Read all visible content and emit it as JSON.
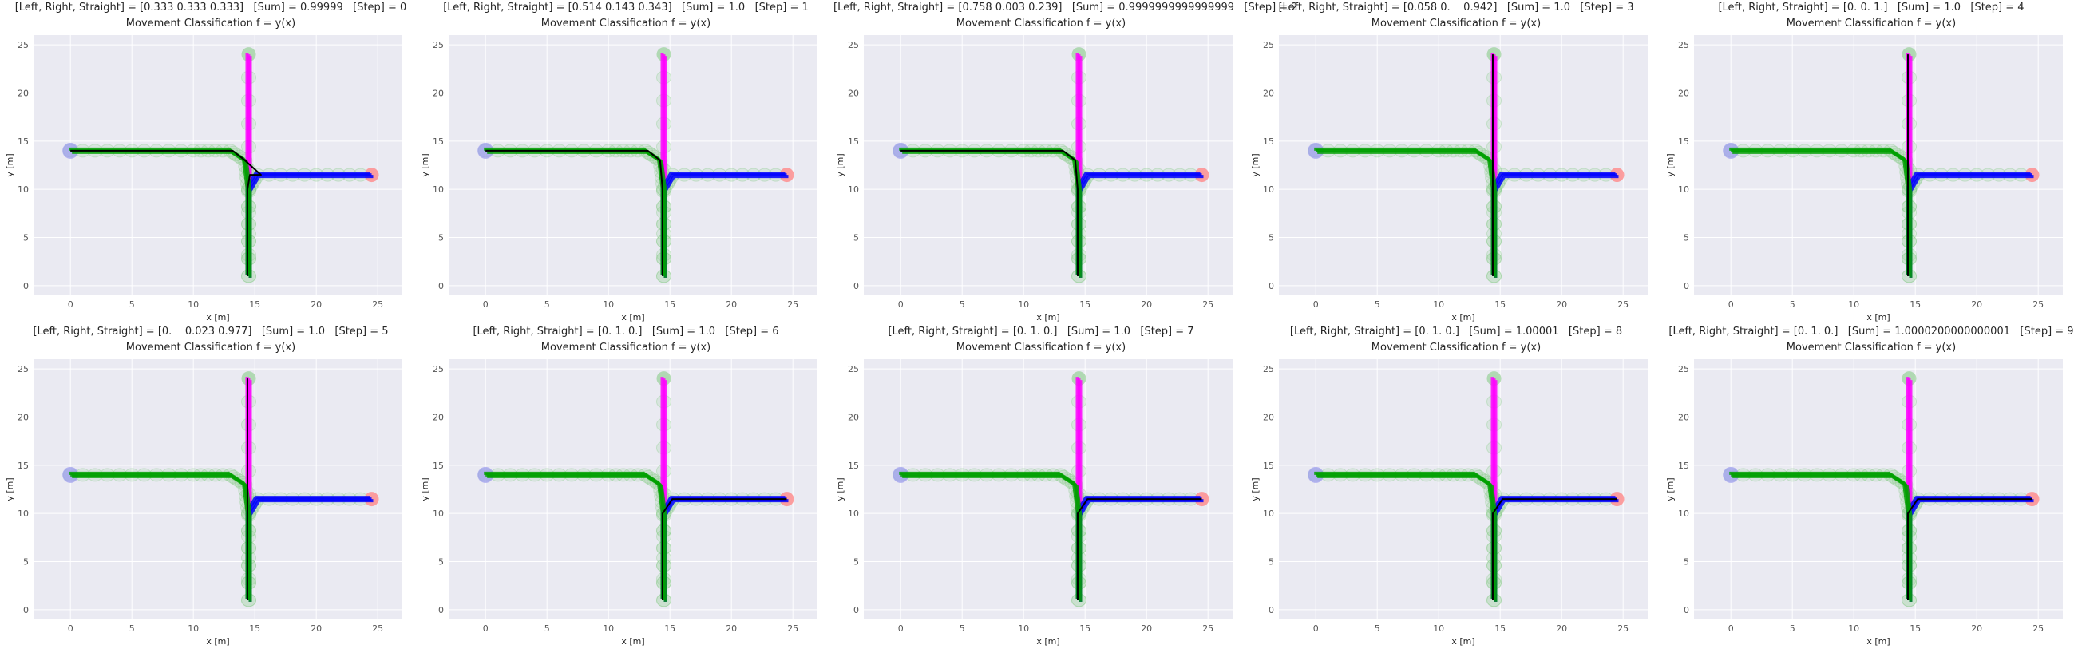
{
  "colors": {
    "plot_bg": "#EAEAF2",
    "grid": "#FFFFFF",
    "left": "#00A000",
    "right": "#0000FF",
    "straight": "#FF00FF",
    "ego": "#000000",
    "start_circle": "#9999EE",
    "end_circle": "#FF8888",
    "cov_circle": "#88CC88"
  },
  "chart_data": [
    {
      "type": "line",
      "title": "[Left, Right, Straight] = [0.333 0.333 0.333]   [Sum] = 0.99999   [Step] = 0",
      "subtitle": "Movement Classification f = y(x)",
      "xlabel": "x [m]",
      "ylabel": "y [m]",
      "xlim": [
        -3,
        27
      ],
      "ylim": [
        -1,
        26
      ],
      "xticks": [
        0,
        5,
        10,
        15,
        20,
        25
      ],
      "yticks": [
        0,
        5,
        10,
        15,
        20,
        25
      ],
      "grid": true,
      "series": [
        {
          "color": "left",
          "x": [
            0,
            5,
            10,
            13,
            14.2,
            14.5,
            14.5
          ],
          "y": [
            14,
            14,
            14,
            14,
            13,
            10,
            1
          ]
        },
        {
          "color": "right",
          "x": [
            14.5,
            14.5,
            15.2,
            20,
            24.5
          ],
          "y": [
            1,
            10,
            11.5,
            11.5,
            11.5
          ]
        },
        {
          "color": "straight",
          "x": [
            14.5,
            14.5,
            14.5
          ],
          "y": [
            1,
            12,
            24
          ]
        },
        {
          "color": "ego",
          "x": [
            14.4,
            14.4,
            14.6,
            15.5,
            15.5,
            14.2,
            13.2,
            5,
            0
          ],
          "y": [
            1,
            10,
            11.5,
            11.5,
            11.5,
            13,
            14,
            14,
            14
          ]
        }
      ]
    },
    {
      "type": "line",
      "title": "[Left, Right, Straight] = [0.514 0.143 0.343]   [Sum] = 1.0   [Step] = 1",
      "subtitle": "Movement Classification f = y(x)",
      "xlabel": "x [m]",
      "ylabel": "y [m]",
      "xlim": [
        -3,
        27
      ],
      "ylim": [
        -1,
        26
      ],
      "xticks": [
        0,
        5,
        10,
        15,
        20,
        25
      ],
      "yticks": [
        0,
        5,
        10,
        15,
        20,
        25
      ],
      "grid": true,
      "series": [
        {
          "color": "left",
          "x": [
            0,
            5,
            10,
            13,
            14.2,
            14.5,
            14.5
          ],
          "y": [
            14,
            14,
            14,
            14,
            13,
            10,
            1
          ]
        },
        {
          "color": "right",
          "x": [
            14.5,
            14.5,
            15.2,
            20,
            24.5
          ],
          "y": [
            1,
            10,
            11.5,
            11.5,
            11.5
          ]
        },
        {
          "color": "straight",
          "x": [
            14.5,
            14.5,
            14.5
          ],
          "y": [
            1,
            12,
            24
          ]
        },
        {
          "color": "ego",
          "x": [
            14.4,
            14.4,
            14.2,
            13.2,
            5,
            0
          ],
          "y": [
            1,
            10,
            13,
            14,
            14,
            14
          ]
        }
      ]
    },
    {
      "type": "line",
      "title": "[Left, Right, Straight] = [0.758 0.003 0.239]   [Sum] = 0.9999999999999999   [Step] = 2",
      "subtitle": "Movement Classification f = y(x)",
      "xlabel": "x [m]",
      "ylabel": "y [m]",
      "xlim": [
        -3,
        27
      ],
      "ylim": [
        -1,
        26
      ],
      "xticks": [
        0,
        5,
        10,
        15,
        20,
        25
      ],
      "yticks": [
        0,
        5,
        10,
        15,
        20,
        25
      ],
      "grid": true,
      "series": [
        {
          "color": "left",
          "x": [
            0,
            5,
            10,
            13,
            14.2,
            14.5,
            14.5
          ],
          "y": [
            14,
            14,
            14,
            14,
            13,
            10,
            1
          ]
        },
        {
          "color": "right",
          "x": [
            14.5,
            14.5,
            15.2,
            20,
            24.5
          ],
          "y": [
            1,
            10,
            11.5,
            11.5,
            11.5
          ]
        },
        {
          "color": "straight",
          "x": [
            14.5,
            14.5,
            14.5
          ],
          "y": [
            1,
            12,
            24
          ]
        },
        {
          "color": "ego",
          "x": [
            14.4,
            14.4,
            14.2,
            13.2,
            5,
            0
          ],
          "y": [
            1,
            10,
            13,
            14,
            14,
            14
          ]
        }
      ]
    },
    {
      "type": "line",
      "title": "[Left, Right, Straight] = [0.058 0.    0.942]   [Sum] = 1.0   [Step] = 3",
      "subtitle": "Movement Classification f = y(x)",
      "xlabel": "x [m]",
      "ylabel": "y [m]",
      "xlim": [
        -3,
        27
      ],
      "ylim": [
        -1,
        26
      ],
      "xticks": [
        0,
        5,
        10,
        15,
        20,
        25
      ],
      "yticks": [
        0,
        5,
        10,
        15,
        20,
        25
      ],
      "grid": true,
      "series": [
        {
          "color": "left",
          "x": [
            0,
            5,
            10,
            13,
            14.2,
            14.5,
            14.5
          ],
          "y": [
            14,
            14,
            14,
            14,
            13,
            10,
            1
          ]
        },
        {
          "color": "right",
          "x": [
            14.5,
            14.5,
            15.2,
            20,
            24.5
          ],
          "y": [
            1,
            10,
            11.5,
            11.5,
            11.5
          ]
        },
        {
          "color": "straight",
          "x": [
            14.5,
            14.5,
            14.5
          ],
          "y": [
            1,
            12,
            24
          ]
        },
        {
          "color": "ego",
          "x": [
            14.4,
            14.4,
            14.4
          ],
          "y": [
            1,
            12,
            24
          ]
        }
      ]
    },
    {
      "type": "line",
      "title": "[Left, Right, Straight] = [0. 0. 1.]   [Sum] = 1.0   [Step] = 4",
      "subtitle": "Movement Classification f = y(x)",
      "xlabel": "x [m]",
      "ylabel": "y [m]",
      "xlim": [
        -3,
        27
      ],
      "ylim": [
        -1,
        26
      ],
      "xticks": [
        0,
        5,
        10,
        15,
        20,
        25
      ],
      "yticks": [
        0,
        5,
        10,
        15,
        20,
        25
      ],
      "grid": true,
      "series": [
        {
          "color": "left",
          "x": [
            0,
            5,
            10,
            13,
            14.2,
            14.5,
            14.5
          ],
          "y": [
            14,
            14,
            14,
            14,
            13,
            10,
            1
          ]
        },
        {
          "color": "right",
          "x": [
            14.5,
            14.5,
            15.2,
            20,
            24.5
          ],
          "y": [
            1,
            10,
            11.5,
            11.5,
            11.5
          ]
        },
        {
          "color": "straight",
          "x": [
            14.5,
            14.5,
            14.5
          ],
          "y": [
            1,
            12,
            24
          ]
        },
        {
          "color": "ego",
          "x": [
            14.4,
            14.4,
            14.4
          ],
          "y": [
            1,
            12,
            24
          ]
        }
      ]
    },
    {
      "type": "line",
      "title": "[Left, Right, Straight] = [0.    0.023 0.977]   [Sum] = 1.0   [Step] = 5",
      "subtitle": "Movement Classification f = y(x)",
      "xlabel": "x [m]",
      "ylabel": "y [m]",
      "xlim": [
        -3,
        27
      ],
      "ylim": [
        -1,
        26
      ],
      "xticks": [
        0,
        5,
        10,
        15,
        20,
        25
      ],
      "yticks": [
        0,
        5,
        10,
        15,
        20,
        25
      ],
      "grid": true,
      "series": [
        {
          "color": "left",
          "x": [
            0,
            5,
            10,
            13,
            14.2,
            14.5,
            14.5
          ],
          "y": [
            14,
            14,
            14,
            14,
            13,
            10,
            1
          ]
        },
        {
          "color": "right",
          "x": [
            14.5,
            14.5,
            15.2,
            20,
            24.5
          ],
          "y": [
            1,
            10,
            11.5,
            11.5,
            11.5
          ]
        },
        {
          "color": "straight",
          "x": [
            14.5,
            14.5,
            14.5
          ],
          "y": [
            1,
            12,
            24
          ]
        },
        {
          "color": "ego",
          "x": [
            14.4,
            14.4,
            14.4
          ],
          "y": [
            1,
            12,
            24
          ]
        }
      ]
    },
    {
      "type": "line",
      "title": "[Left, Right, Straight] = [0. 1. 0.]   [Sum] = 1.0   [Step] = 6",
      "subtitle": "Movement Classification f = y(x)",
      "xlabel": "x [m]",
      "ylabel": "y [m]",
      "xlim": [
        -3,
        27
      ],
      "ylim": [
        -1,
        26
      ],
      "xticks": [
        0,
        5,
        10,
        15,
        20,
        25
      ],
      "yticks": [
        0,
        5,
        10,
        15,
        20,
        25
      ],
      "grid": true,
      "series": [
        {
          "color": "left",
          "x": [
            0,
            5,
            10,
            13,
            14.2,
            14.5,
            14.5
          ],
          "y": [
            14,
            14,
            14,
            14,
            13,
            10,
            1
          ]
        },
        {
          "color": "right",
          "x": [
            14.5,
            14.5,
            15.2,
            20,
            24.5
          ],
          "y": [
            1,
            10,
            11.5,
            11.5,
            11.5
          ]
        },
        {
          "color": "straight",
          "x": [
            14.5,
            14.5,
            14.5
          ],
          "y": [
            1,
            12,
            24
          ]
        },
        {
          "color": "ego",
          "x": [
            14.4,
            14.4,
            15.2,
            20,
            24.5
          ],
          "y": [
            1,
            10,
            11.5,
            11.5,
            11.5
          ]
        }
      ]
    },
    {
      "type": "line",
      "title": "[Left, Right, Straight] = [0. 1. 0.]   [Sum] = 1.0   [Step] = 7",
      "subtitle": "Movement Classification f = y(x)",
      "xlabel": "x [m]",
      "ylabel": "y [m]",
      "xlim": [
        -3,
        27
      ],
      "ylim": [
        -1,
        26
      ],
      "xticks": [
        0,
        5,
        10,
        15,
        20,
        25
      ],
      "yticks": [
        0,
        5,
        10,
        15,
        20,
        25
      ],
      "grid": true,
      "series": [
        {
          "color": "left",
          "x": [
            0,
            5,
            10,
            13,
            14.2,
            14.5,
            14.5
          ],
          "y": [
            14,
            14,
            14,
            14,
            13,
            10,
            1
          ]
        },
        {
          "color": "right",
          "x": [
            14.5,
            14.5,
            15.2,
            20,
            24.5
          ],
          "y": [
            1,
            10,
            11.5,
            11.5,
            11.5
          ]
        },
        {
          "color": "straight",
          "x": [
            14.5,
            14.5,
            14.5
          ],
          "y": [
            1,
            12,
            24
          ]
        },
        {
          "color": "ego",
          "x": [
            14.4,
            14.4,
            15.2,
            20,
            24.5
          ],
          "y": [
            1,
            10,
            11.5,
            11.5,
            11.5
          ]
        }
      ]
    },
    {
      "type": "line",
      "title": "[Left, Right, Straight] = [0. 1. 0.]   [Sum] = 1.00001   [Step] = 8",
      "subtitle": "Movement Classification f = y(x)",
      "xlabel": "x [m]",
      "ylabel": "y [m]",
      "xlim": [
        -3,
        27
      ],
      "ylim": [
        -1,
        26
      ],
      "xticks": [
        0,
        5,
        10,
        15,
        20,
        25
      ],
      "yticks": [
        0,
        5,
        10,
        15,
        20,
        25
      ],
      "grid": true,
      "series": [
        {
          "color": "left",
          "x": [
            0,
            5,
            10,
            13,
            14.2,
            14.5,
            14.5
          ],
          "y": [
            14,
            14,
            14,
            14,
            13,
            10,
            1
          ]
        },
        {
          "color": "right",
          "x": [
            14.5,
            14.5,
            15.2,
            20,
            24.5
          ],
          "y": [
            1,
            10,
            11.5,
            11.5,
            11.5
          ]
        },
        {
          "color": "straight",
          "x": [
            14.5,
            14.5,
            14.5
          ],
          "y": [
            1,
            12,
            24
          ]
        },
        {
          "color": "ego",
          "x": [
            14.4,
            14.4,
            15.2,
            20,
            24.5
          ],
          "y": [
            1,
            10,
            11.5,
            11.5,
            11.5
          ]
        }
      ]
    },
    {
      "type": "line",
      "title": "[Left, Right, Straight] = [0. 1. 0.]   [Sum] = 1.0000200000000001   [Step] = 9",
      "subtitle": "Movement Classification f = y(x)",
      "xlabel": "x [m]",
      "ylabel": "y [m]",
      "xlim": [
        -3,
        27
      ],
      "ylim": [
        -1,
        26
      ],
      "xticks": [
        0,
        5,
        10,
        15,
        20,
        25
      ],
      "yticks": [
        0,
        5,
        10,
        15,
        20,
        25
      ],
      "grid": true,
      "series": [
        {
          "color": "left",
          "x": [
            0,
            5,
            10,
            13,
            14.2,
            14.5,
            14.5
          ],
          "y": [
            14,
            14,
            14,
            14,
            13,
            10,
            1
          ]
        },
        {
          "color": "right",
          "x": [
            14.5,
            14.5,
            15.2,
            20,
            24.5
          ],
          "y": [
            1,
            10,
            11.5,
            11.5,
            11.5
          ]
        },
        {
          "color": "straight",
          "x": [
            14.5,
            14.5,
            14.5
          ],
          "y": [
            1,
            12,
            24
          ]
        },
        {
          "color": "ego",
          "x": [
            14.4,
            14.4,
            15.2,
            20,
            24.5
          ],
          "y": [
            1,
            10,
            11.5,
            11.5,
            11.5
          ]
        }
      ]
    }
  ]
}
